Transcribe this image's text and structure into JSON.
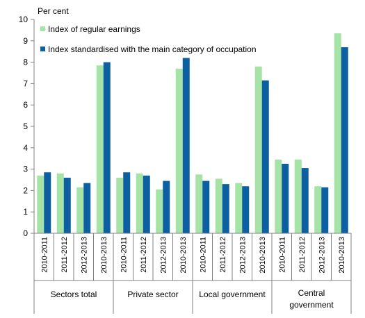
{
  "chart_data": {
    "type": "bar",
    "ylabel": "Per cent",
    "xlabel": "",
    "title": "",
    "ylim": [
      0,
      10
    ],
    "yticks": [
      0,
      1,
      2,
      3,
      4,
      5,
      6,
      7,
      8,
      9,
      10
    ],
    "grid": false,
    "legend_position": "top-left",
    "categories": [
      "2010-2011",
      "2011-2012",
      "2012-2013",
      "2010-2013",
      "2010-2011",
      "2011-2012",
      "2012-2013",
      "2010-2013",
      "2010-2011",
      "2011-2012",
      "2012-2013",
      "2010-2013",
      "2010-2011",
      "2011-2012",
      "2012-2013",
      "2010-2013"
    ],
    "groups": [
      {
        "label": "Sectors total",
        "start": 0,
        "count": 4
      },
      {
        "label": "Private sector",
        "start": 4,
        "count": 4
      },
      {
        "label": "Local government",
        "start": 8,
        "count": 4
      },
      {
        "label": "Central government",
        "start": 12,
        "count": 4
      }
    ],
    "series": [
      {
        "name": "Index of regular earnings",
        "color": "#a6e3a6",
        "values": [
          2.7,
          2.8,
          2.15,
          7.85,
          2.6,
          2.8,
          2.05,
          7.7,
          2.75,
          2.55,
          2.35,
          7.8,
          3.45,
          3.45,
          2.2,
          9.35
        ]
      },
      {
        "name": "Index standardised with the main category of occupation",
        "color": "#0c5fa0",
        "values": [
          2.85,
          2.6,
          2.35,
          8.0,
          2.85,
          2.7,
          2.45,
          8.2,
          2.45,
          2.3,
          2.2,
          7.15,
          3.25,
          3.05,
          2.15,
          8.7
        ]
      }
    ]
  }
}
